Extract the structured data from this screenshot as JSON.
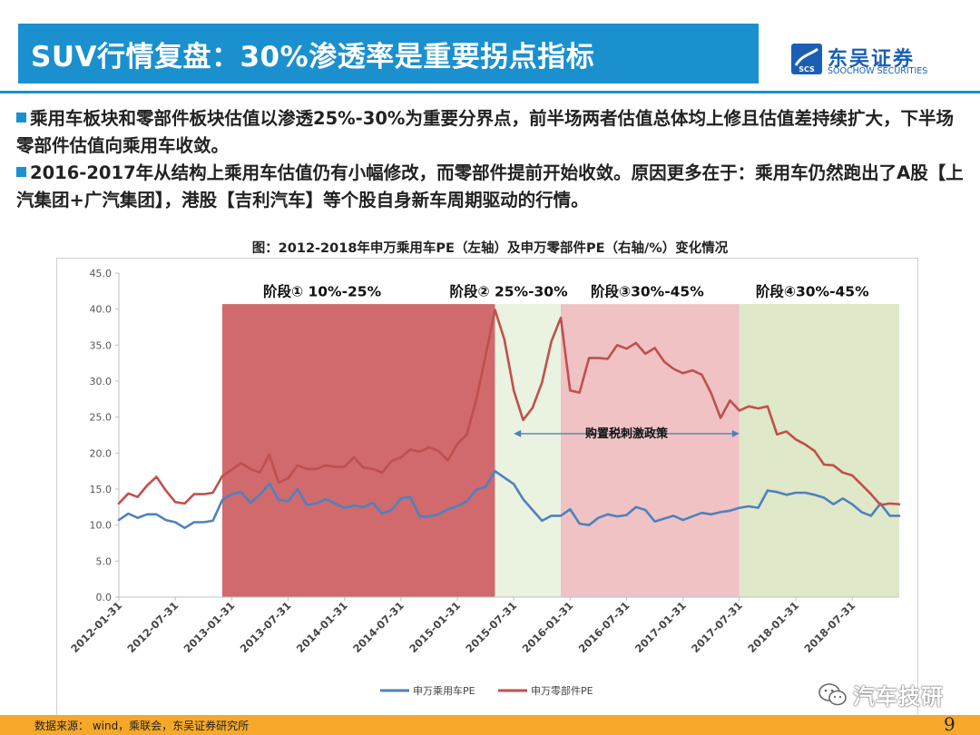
{
  "header": {
    "title": "SUV行情复盘：30%渗透率是重要拐点指标",
    "logo_name": "东吴证券",
    "logo_sub": "SOOCHOW SECURITIES",
    "logo_mark_text": "SCS"
  },
  "bullets": [
    "乘用车板块和零部件板块估值以渗透25%-30%为重要分界点，前半场两者估值总体均上修且估值差持续扩大，下半场零部件估值向乘用车收敛。",
    "2016-2017年从结构上乘用车估值仍有小幅修改，而零部件提前开始收敛。原因更多在于：乘用车仍然跑出了A股【上汽集团+广汽集团】，港股【吉利汽车】等个股自身新车周期驱动的行情。"
  ],
  "footer": {
    "source": "数据来源： wind，乘联会，东吴证券研究所",
    "page": "9",
    "watermark": "汽车技研"
  },
  "colors": {
    "accent": "#1a90cf",
    "footer": "#f5a82a",
    "series_car": "#4f81bd",
    "series_parts": "#c0504d",
    "stage1": "#d06a6d",
    "stage2": "#eaf2e0",
    "stage3": "#f0c2c4",
    "stage4": "#dfe8c8"
  },
  "chart_data": {
    "type": "line",
    "title": "图：2012-2018年申万乘用车PE（左轴）及申万零部件PE（右轴/%）变化情况",
    "ylim": [
      0,
      45
    ],
    "yticks": [
      "0.0",
      "5.0",
      "10.0",
      "15.0",
      "20.0",
      "25.0",
      "30.0",
      "35.0",
      "40.0",
      "45.0"
    ],
    "x_tick_labels": [
      "2012-01-31",
      "2012-07-31",
      "2013-01-31",
      "2013-07-31",
      "2014-01-31",
      "2014-07-31",
      "2015-01-31",
      "2015-07-31",
      "2016-01-31",
      "2016-07-31",
      "2017-01-31",
      "2017-07-31",
      "2018-01-31",
      "2018-07-31"
    ],
    "x_start": "2012-01",
    "x_end": "2018-12",
    "stages": [
      {
        "label": "阶段① 10%-25%",
        "start": "2012-12",
        "end": "2015-05"
      },
      {
        "label": "阶段② 25%-30%",
        "start": "2015-05",
        "end": "2015-12"
      },
      {
        "label": "阶段③30%-45%",
        "start": "2015-12",
        "end": "2017-07"
      },
      {
        "label": "阶段④30%-45%",
        "start": "2017-07",
        "end": "2018-12"
      }
    ],
    "annotation": {
      "text": "购置税刺激政策",
      "start": "2015-07",
      "end": "2017-07",
      "y": 22.7
    },
    "legend_position": "bottom",
    "series": [
      {
        "name": "申万乘用车PE",
        "values": [
          10.7,
          11.6,
          11.0,
          11.5,
          11.5,
          10.7,
          10.4,
          9.6,
          10.4,
          10.4,
          10.6,
          13.5,
          14.3,
          14.6,
          13.1,
          14.2,
          15.8,
          13.5,
          13.3,
          15.0,
          12.8,
          13.0,
          13.6,
          13.0,
          12.4,
          12.7,
          12.5,
          13.1,
          11.6,
          12.1,
          13.7,
          13.9,
          11.2,
          11.2,
          11.5,
          12.2,
          12.6,
          13.3,
          14.9,
          15.3,
          17.5,
          16.6,
          15.7,
          13.6,
          12.1,
          10.6,
          11.3,
          11.3,
          12.2,
          10.2,
          10.0,
          11.0,
          11.5,
          11.2,
          11.4,
          12.5,
          12.1,
          10.5,
          10.9,
          11.3,
          10.7,
          11.2,
          11.7,
          11.5,
          11.8,
          12.0,
          12.4,
          12.6,
          12.4,
          14.8,
          14.6,
          14.2,
          14.5,
          14.5,
          14.2,
          13.8,
          12.9,
          13.7,
          12.9,
          11.8,
          11.3,
          13.0,
          11.3,
          11.3
        ]
      },
      {
        "name": "申万零部件PE",
        "values": [
          13.0,
          14.4,
          13.9,
          15.5,
          16.7,
          14.8,
          13.2,
          13.0,
          14.3,
          14.3,
          14.5,
          16.8,
          17.7,
          18.6,
          17.8,
          17.3,
          19.8,
          15.9,
          16.5,
          18.3,
          17.8,
          17.8,
          18.3,
          18.1,
          18.1,
          19.4,
          18.0,
          17.8,
          17.3,
          18.9,
          19.4,
          20.5,
          20.2,
          20.8,
          20.3,
          19.0,
          21.3,
          22.6,
          27.3,
          33.5,
          39.9,
          35.8,
          28.7,
          24.6,
          26.3,
          29.8,
          35.5,
          38.8,
          28.7,
          28.4,
          33.2,
          33.2,
          33.1,
          35.0,
          34.5,
          35.3,
          33.8,
          34.6,
          32.7,
          31.7,
          31.1,
          31.5,
          30.9,
          28.3,
          24.9,
          27.3,
          25.9,
          26.5,
          26.2,
          26.5,
          22.6,
          23.0,
          21.9,
          21.2,
          20.3,
          18.4,
          18.3,
          17.3,
          16.9,
          15.6,
          14.3,
          12.8,
          13.0,
          12.9
        ]
      }
    ]
  }
}
